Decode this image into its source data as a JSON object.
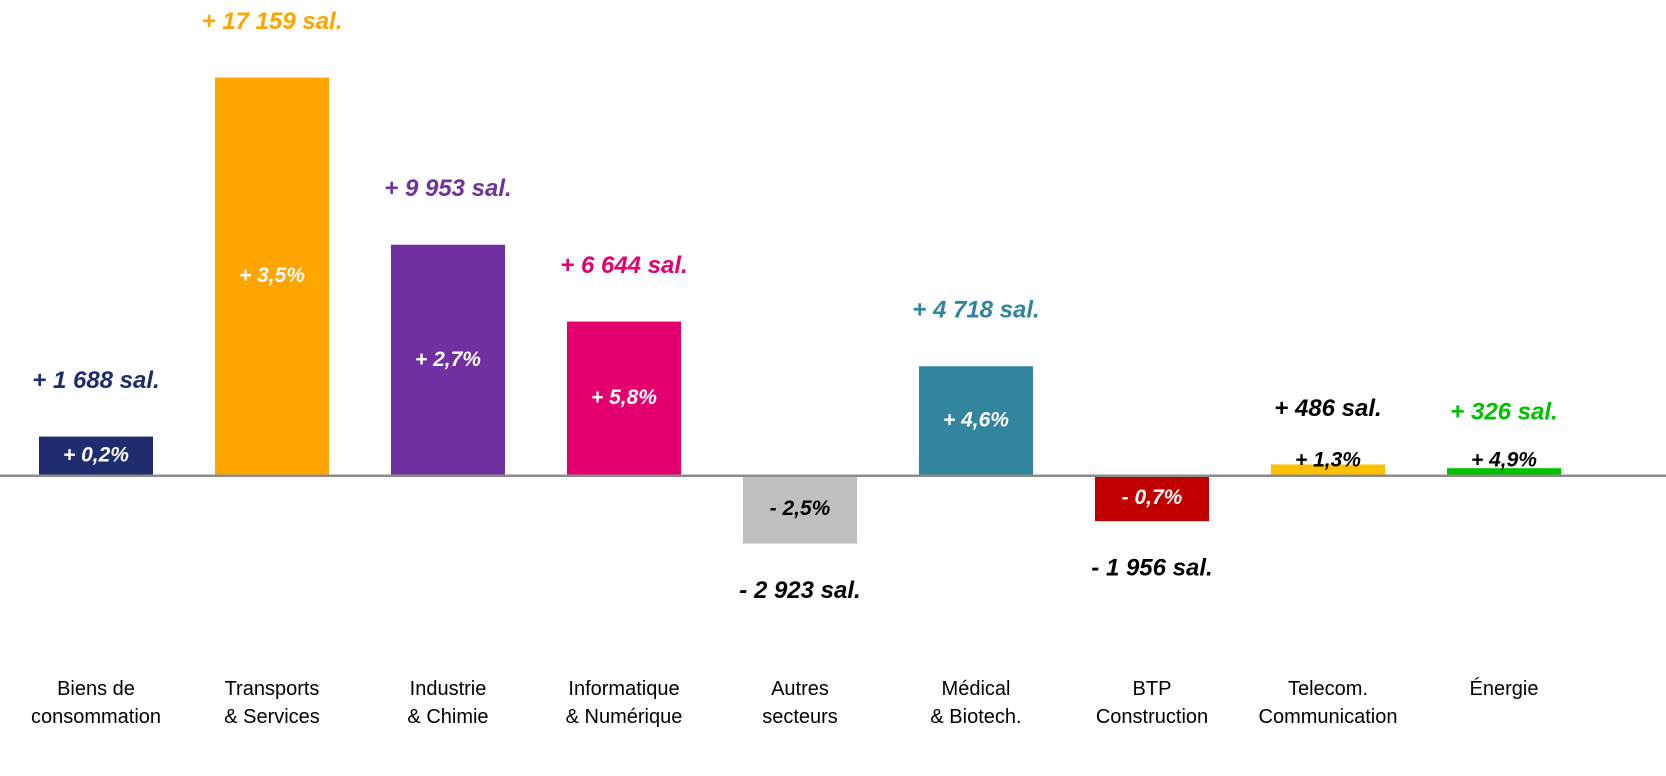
{
  "chart_data": {
    "type": "bar",
    "categories": [
      [
        "Biens de",
        "consommation"
      ],
      [
        "Transports",
        "& Services"
      ],
      [
        "Industrie",
        "& Chimie"
      ],
      [
        "Informatique",
        "& Numérique"
      ],
      [
        "Autres",
        "secteurs"
      ],
      [
        "Médical",
        "& Biotech."
      ],
      [
        "BTP",
        "Construction"
      ],
      [
        "Telecom.",
        "Communication"
      ],
      [
        "Énergie"
      ]
    ],
    "values": [
      1688,
      17159,
      9953,
      6644,
      -2923,
      4718,
      -1956,
      486,
      326
    ],
    "value_labels": [
      "+ 1 688 sal.",
      "+ 17 159 sal.",
      "+ 9 953 sal.",
      "+ 6 644 sal.",
      "-  2 923 sal.",
      "+ 4 718 sal.",
      "-  1 956 sal.",
      "+ 486 sal.",
      "+ 326 sal."
    ],
    "percent_labels": [
      "+ 0,2%",
      "+ 3,5%",
      "+ 2,7%",
      "+ 5,8%",
      "- 2,5%",
      "+ 4,6%",
      "- 0,7%",
      "+ 1,3%",
      "+ 4,9%"
    ],
    "colors": [
      "#1f2d6e",
      "#ffa500",
      "#7030a0",
      "#e3006e",
      "#bfbfbf",
      "#31859c",
      "#c00000",
      "#ffc000",
      "#00c000"
    ],
    "label_colors": [
      "#1f2d6e",
      "#ffa500",
      "#7030a0",
      "#e3006e",
      "#000000",
      "#31859c",
      "#000000",
      "#000000",
      "#00c000"
    ],
    "percent_label_colors": [
      "#ffffff",
      "#ffffff",
      "#ffffff",
      "#ffffff",
      "#000000",
      "#ffffff",
      "#ffffff",
      "#000000",
      "#000000"
    ],
    "ylim": [
      -6000,
      18000
    ]
  }
}
